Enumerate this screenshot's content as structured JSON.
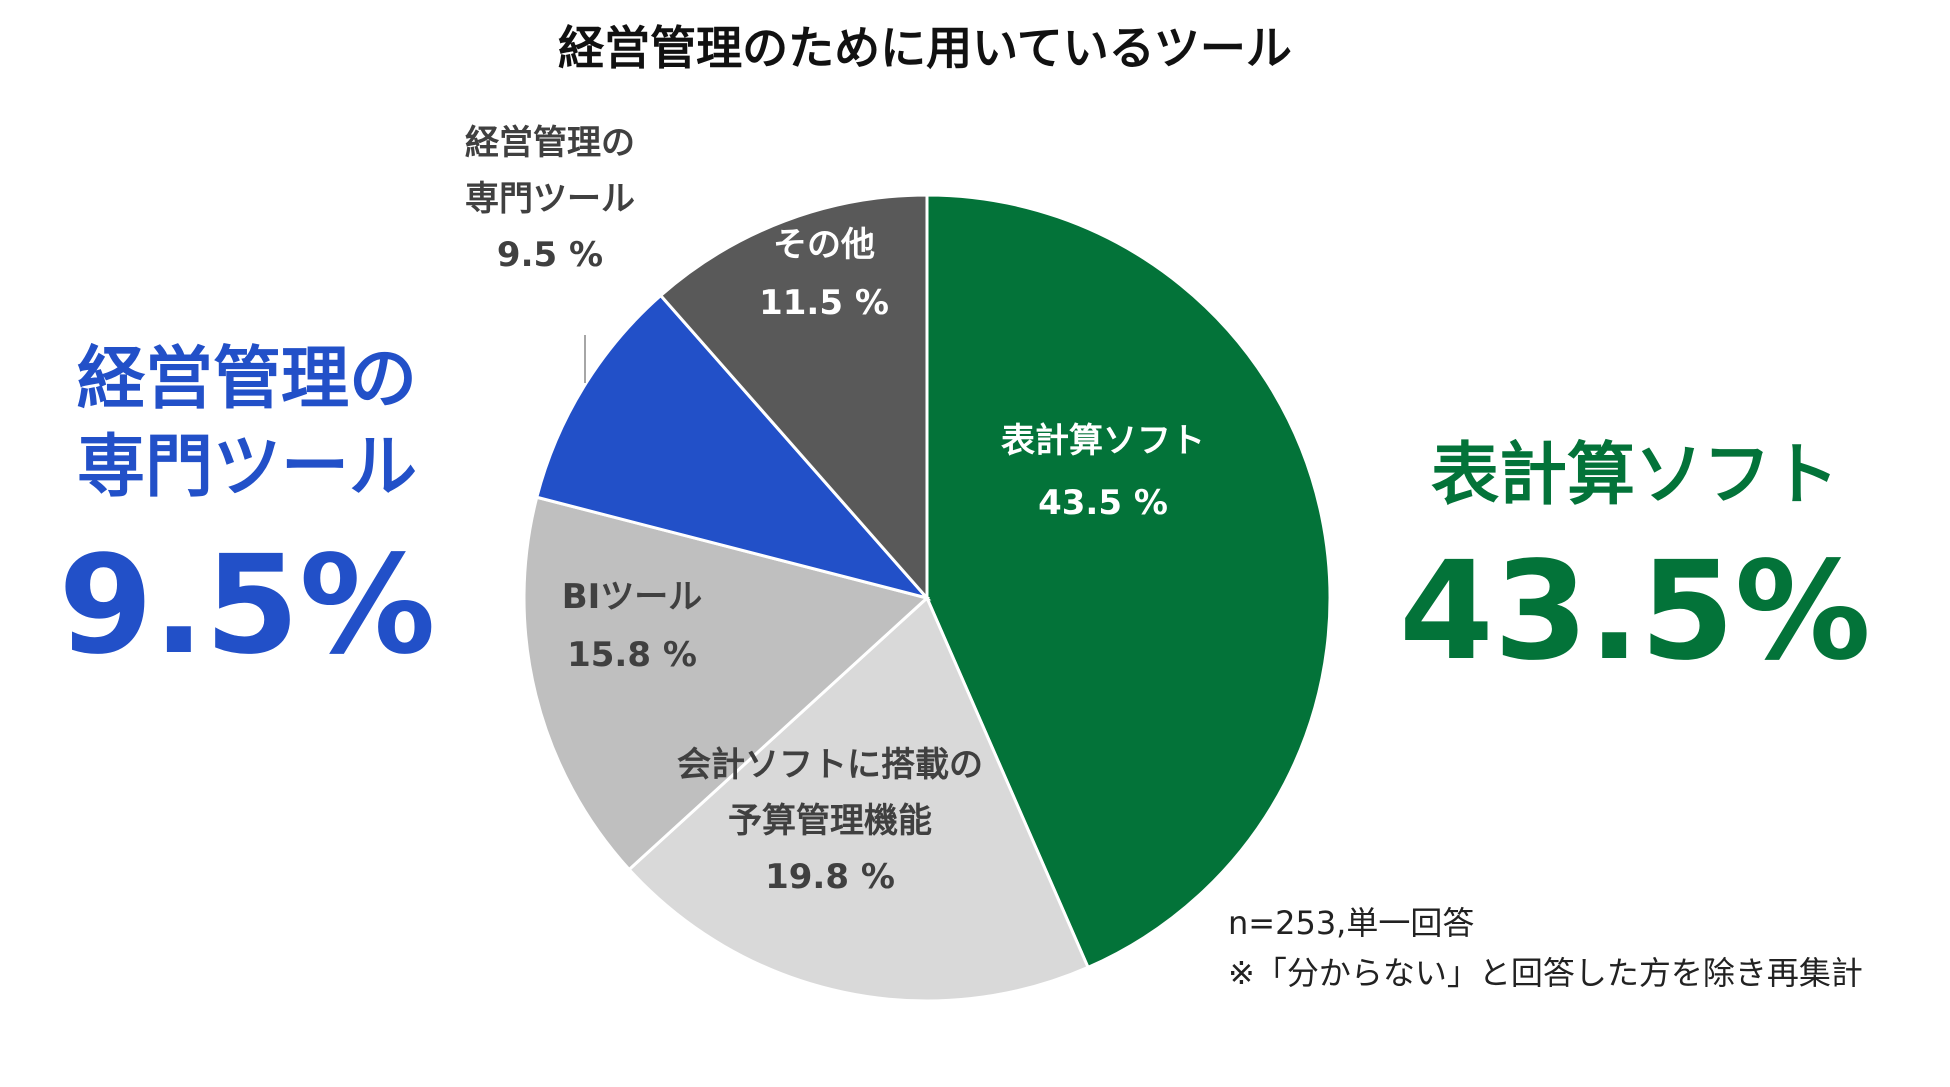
{
  "chart_data": {
    "type": "pie",
    "title": "経営管理のために用いているツール",
    "slices": [
      {
        "label": "表計算ソフト",
        "value": 43.5,
        "value_label": "43.5 %",
        "color": "#037339",
        "text_color": "#ffffff"
      },
      {
        "label": "会計ソフトに搭載の予算管理機能",
        "label_lines": [
          "会計ソフトに搭載の",
          "予算管理機能"
        ],
        "value": 19.8,
        "value_label": "19.8 %",
        "color": "#d9d9d9",
        "text_color": "#404040"
      },
      {
        "label": "BIツール",
        "value": 15.8,
        "value_label": "15.8 %",
        "color": "#bfbfbf",
        "text_color": "#404040"
      },
      {
        "label": "経営管理の専門ツール",
        "label_lines": [
          "経営管理の",
          "専門ツール"
        ],
        "value": 9.5,
        "value_label": "9.5 %",
        "color": "#2250c8",
        "text_color": "#404040"
      },
      {
        "label": "その他",
        "value": 11.5,
        "value_label": "11.5 %",
        "color": "#595959",
        "text_color": "#ffffff"
      }
    ],
    "start_angle": "12 o'clock",
    "direction": "clockwise"
  },
  "callouts": {
    "left": {
      "name_lines": [
        "経営管理の",
        "専門ツール"
      ],
      "value": "9.5%",
      "color": "#2250c8"
    },
    "right": {
      "name": "表計算ソフト",
      "value": "43.5%",
      "color": "#037339"
    }
  },
  "notes": {
    "sample": "n=253,単一回答",
    "exclusion": "※「分からない」と回答した方を除き再集計"
  }
}
